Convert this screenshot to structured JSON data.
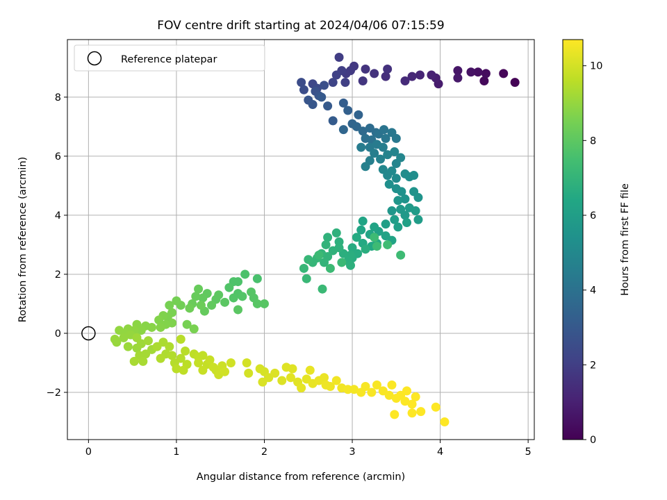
{
  "chart_data": {
    "type": "scatter",
    "title": "FOV centre drift starting at 2024/04/06 07:15:59",
    "xlabel": "Angular distance from reference (arcmin)",
    "ylabel": "Rotation from reference (arcmin)",
    "xlim": [
      -0.24,
      5.07
    ],
    "ylim": [
      -3.6,
      9.95
    ],
    "xticks": [
      0,
      1,
      2,
      3,
      4,
      5
    ],
    "yticks": [
      -2,
      0,
      2,
      4,
      6,
      8
    ],
    "xtick_labels": [
      "0",
      "1",
      "2",
      "3",
      "4",
      "5"
    ],
    "ytick_labels": [
      "−2",
      "0",
      "2",
      "4",
      "6",
      "8"
    ],
    "grid": true,
    "legend": {
      "position": "top-left",
      "entries": [
        "Reference platepar"
      ]
    },
    "reference_point": {
      "x": 0,
      "y": 0,
      "label": "Reference platepar"
    },
    "colorbar": {
      "label": "Hours from first FF file",
      "colormap": "viridis",
      "range": [
        0,
        10.7
      ],
      "ticks": [
        0,
        2,
        4,
        6,
        8,
        10
      ],
      "tick_labels": [
        "0",
        "2",
        "4",
        "6",
        "8",
        "10"
      ]
    },
    "points": [
      [
        4.85,
        8.5,
        0.05
      ],
      [
        4.72,
        8.8,
        0.15
      ],
      [
        4.5,
        8.55,
        0.25
      ],
      [
        4.52,
        8.8,
        0.35
      ],
      [
        4.43,
        8.85,
        0.45
      ],
      [
        4.35,
        8.85,
        0.55
      ],
      [
        4.2,
        8.9,
        0.65
      ],
      [
        4.2,
        8.65,
        0.75
      ],
      [
        3.98,
        8.45,
        0.85
      ],
      [
        3.95,
        8.65,
        0.95
      ],
      [
        3.9,
        8.75,
        1.05
      ],
      [
        3.77,
        8.75,
        1.15
      ],
      [
        3.68,
        8.7,
        1.25
      ],
      [
        3.6,
        8.55,
        1.35
      ],
      [
        3.38,
        8.7,
        1.45
      ],
      [
        3.4,
        8.95,
        1.55
      ],
      [
        3.25,
        8.8,
        1.6
      ],
      [
        3.15,
        8.95,
        1.65
      ],
      [
        3.12,
        8.55,
        1.7
      ],
      [
        3.02,
        9.05,
        1.8
      ],
      [
        2.98,
        8.9,
        1.85
      ],
      [
        2.93,
        8.8,
        1.9
      ],
      [
        2.85,
        9.35,
        1.95
      ],
      [
        2.88,
        8.9,
        2.0
      ],
      [
        2.92,
        8.5,
        2.05
      ],
      [
        2.82,
        8.75,
        2.1
      ],
      [
        2.78,
        8.5,
        2.2
      ],
      [
        2.55,
        8.45,
        2.3
      ],
      [
        2.6,
        8.3,
        2.4
      ],
      [
        2.42,
        8.5,
        2.5
      ],
      [
        2.45,
        8.25,
        2.55
      ],
      [
        2.68,
        8.4,
        2.6
      ],
      [
        2.58,
        8.2,
        2.7
      ],
      [
        2.62,
        8.05,
        2.8
      ],
      [
        2.5,
        7.9,
        2.85
      ],
      [
        2.55,
        7.75,
        2.9
      ],
      [
        2.65,
        8.0,
        3.0
      ],
      [
        2.72,
        7.7,
        3.05
      ],
      [
        2.78,
        7.2,
        3.1
      ],
      [
        2.9,
        7.8,
        3.2
      ],
      [
        2.95,
        7.55,
        3.3
      ],
      [
        3.07,
        7.4,
        3.4
      ],
      [
        3.0,
        7.1,
        3.5
      ],
      [
        2.9,
        6.9,
        3.55
      ],
      [
        3.05,
        7.0,
        3.6
      ],
      [
        3.12,
        6.85,
        3.7
      ],
      [
        3.2,
        6.95,
        3.8
      ],
      [
        3.27,
        6.8,
        3.85
      ],
      [
        3.15,
        6.6,
        3.9
      ],
      [
        3.22,
        6.55,
        4.0
      ],
      [
        3.3,
        6.75,
        4.05
      ],
      [
        3.36,
        6.9,
        4.1
      ],
      [
        3.38,
        6.6,
        4.2
      ],
      [
        3.45,
        6.8,
        4.25
      ],
      [
        3.5,
        6.6,
        4.3
      ],
      [
        3.2,
        6.3,
        4.35
      ],
      [
        3.28,
        6.4,
        4.4
      ],
      [
        3.1,
        6.3,
        4.45
      ],
      [
        3.35,
        6.3,
        4.5
      ],
      [
        3.25,
        6.1,
        4.55
      ],
      [
        3.2,
        5.85,
        4.6
      ],
      [
        3.15,
        5.65,
        4.65
      ],
      [
        3.32,
        5.9,
        4.7
      ],
      [
        3.4,
        6.05,
        4.75
      ],
      [
        3.48,
        6.15,
        4.8
      ],
      [
        3.5,
        5.75,
        4.85
      ],
      [
        3.55,
        5.95,
        4.9
      ],
      [
        3.35,
        5.55,
        4.95
      ],
      [
        3.4,
        5.35,
        5.0
      ],
      [
        3.45,
        5.5,
        5.05
      ],
      [
        3.5,
        5.25,
        5.1
      ],
      [
        3.6,
        5.4,
        5.15
      ],
      [
        3.65,
        5.3,
        5.2
      ],
      [
        3.7,
        5.35,
        5.25
      ],
      [
        3.42,
        5.05,
        5.3
      ],
      [
        3.5,
        4.9,
        5.35
      ],
      [
        3.56,
        4.8,
        5.4
      ],
      [
        3.6,
        4.55,
        5.45
      ],
      [
        3.7,
        4.8,
        5.5
      ],
      [
        3.75,
        4.6,
        5.55
      ],
      [
        3.52,
        4.5,
        5.6
      ],
      [
        3.45,
        4.15,
        5.65
      ],
      [
        3.55,
        4.2,
        5.7
      ],
      [
        3.6,
        4.0,
        5.75
      ],
      [
        3.65,
        4.25,
        5.8
      ],
      [
        3.72,
        4.15,
        5.85
      ],
      [
        3.75,
        3.85,
        5.9
      ],
      [
        3.48,
        3.85,
        5.95
      ],
      [
        3.38,
        3.7,
        6.0
      ],
      [
        3.52,
        3.6,
        6.05
      ],
      [
        3.62,
        3.75,
        6.1
      ],
      [
        3.3,
        3.45,
        6.15
      ],
      [
        3.38,
        3.3,
        6.2
      ],
      [
        3.45,
        3.15,
        6.25
      ],
      [
        3.25,
        3.6,
        6.25
      ],
      [
        3.2,
        3.35,
        6.3
      ],
      [
        3.12,
        3.8,
        6.3
      ],
      [
        3.1,
        3.5,
        6.35
      ],
      [
        3.28,
        3.05,
        6.4
      ],
      [
        3.22,
        2.95,
        6.45
      ],
      [
        3.12,
        3.05,
        6.5
      ],
      [
        3.05,
        3.25,
        6.55
      ],
      [
        3.0,
        2.9,
        6.6
      ],
      [
        3.06,
        2.7,
        6.6
      ],
      [
        3.0,
        2.55,
        6.65
      ],
      [
        3.15,
        2.85,
        6.7
      ],
      [
        2.98,
        2.65,
        6.7
      ],
      [
        2.9,
        2.7,
        6.75
      ],
      [
        2.95,
        2.45,
        6.75
      ],
      [
        2.98,
        2.3,
        6.8
      ],
      [
        2.85,
        3.1,
        6.8
      ],
      [
        2.82,
        3.4,
        6.85
      ],
      [
        2.85,
        2.9,
        6.85
      ],
      [
        2.78,
        2.8,
        6.9
      ],
      [
        2.72,
        3.25,
        6.9
      ],
      [
        2.7,
        3.0,
        6.95
      ],
      [
        2.72,
        2.6,
        6.95
      ],
      [
        2.68,
        2.4,
        7.0
      ],
      [
        2.65,
        2.7,
        7.0
      ],
      [
        2.6,
        2.55,
        7.05
      ],
      [
        2.55,
        2.4,
        7.05
      ],
      [
        2.5,
        2.5,
        7.1
      ],
      [
        2.45,
        2.2,
        7.1
      ],
      [
        2.48,
        1.85,
        7.15
      ],
      [
        2.66,
        1.5,
        7.2
      ],
      [
        2.88,
        2.4,
        7.2
      ],
      [
        2.75,
        2.2,
        7.25
      ],
      [
        2.62,
        2.65,
        7.25
      ],
      [
        3.25,
        3.25,
        7.3
      ],
      [
        3.28,
        2.95,
        7.3
      ],
      [
        3.55,
        2.65,
        7.3
      ],
      [
        3.4,
        3.0,
        7.35
      ],
      [
        1.92,
        1.85,
        7.6
      ],
      [
        1.78,
        2.0,
        7.65
      ],
      [
        1.7,
        1.75,
        7.7
      ],
      [
        1.65,
        1.75,
        7.7
      ],
      [
        1.6,
        1.55,
        7.75
      ],
      [
        1.7,
        1.35,
        7.75
      ],
      [
        1.75,
        1.25,
        7.8
      ],
      [
        1.65,
        1.2,
        7.8
      ],
      [
        1.85,
        1.4,
        7.85
      ],
      [
        1.88,
        1.2,
        7.85
      ],
      [
        2.0,
        1.0,
        7.9
      ],
      [
        1.92,
        1.0,
        7.9
      ],
      [
        1.7,
        0.8,
        7.95
      ],
      [
        1.55,
        1.05,
        7.95
      ],
      [
        1.48,
        1.3,
        8.0
      ],
      [
        1.45,
        1.15,
        8.0
      ],
      [
        1.35,
        1.35,
        8.05
      ],
      [
        1.3,
        1.2,
        8.1
      ],
      [
        1.4,
        0.95,
        8.1
      ],
      [
        1.32,
        0.75,
        8.15
      ],
      [
        1.25,
        1.5,
        8.2
      ],
      [
        1.22,
        1.25,
        8.2
      ],
      [
        1.18,
        1.0,
        8.25
      ],
      [
        1.28,
        0.95,
        8.3
      ],
      [
        1.15,
        0.85,
        8.35
      ],
      [
        1.05,
        0.95,
        8.4
      ],
      [
        1.0,
        1.1,
        8.45
      ],
      [
        0.92,
        0.95,
        8.5
      ],
      [
        1.12,
        0.3,
        8.5
      ],
      [
        1.2,
        0.15,
        8.55
      ],
      [
        0.95,
        0.7,
        8.55
      ],
      [
        0.9,
        0.55,
        8.6
      ],
      [
        0.85,
        0.6,
        8.65
      ],
      [
        0.95,
        0.35,
        8.65
      ],
      [
        0.88,
        0.3,
        8.7
      ],
      [
        0.8,
        0.45,
        8.7
      ],
      [
        0.82,
        0.2,
        8.75
      ],
      [
        0.72,
        0.2,
        8.8
      ],
      [
        0.65,
        0.25,
        8.8
      ],
      [
        0.55,
        0.3,
        8.85
      ],
      [
        0.6,
        0.1,
        8.85
      ],
      [
        0.52,
        0.1,
        8.9
      ],
      [
        0.45,
        0.15,
        8.9
      ],
      [
        0.35,
        0.1,
        8.95
      ],
      [
        0.42,
        0.0,
        8.95
      ],
      [
        0.48,
        -0.05,
        9.0
      ],
      [
        0.4,
        -0.15,
        9.0
      ],
      [
        0.3,
        -0.2,
        9.05
      ],
      [
        0.32,
        -0.3,
        9.05
      ],
      [
        0.45,
        -0.45,
        9.1
      ],
      [
        0.55,
        -0.5,
        9.1
      ],
      [
        0.6,
        -0.35,
        9.15
      ],
      [
        0.55,
        -0.15,
        9.15
      ],
      [
        0.68,
        -0.25,
        9.2
      ],
      [
        0.72,
        -0.55,
        9.2
      ],
      [
        0.65,
        -0.7,
        9.25
      ],
      [
        0.58,
        -0.75,
        9.25
      ],
      [
        0.62,
        -0.95,
        9.3
      ],
      [
        0.52,
        -0.95,
        9.3
      ],
      [
        0.78,
        -0.45,
        9.35
      ],
      [
        0.85,
        -0.3,
        9.35
      ],
      [
        0.92,
        -0.45,
        9.4
      ],
      [
        0.88,
        -0.7,
        9.4
      ],
      [
        0.82,
        -0.85,
        9.45
      ],
      [
        0.95,
        -0.75,
        9.45
      ],
      [
        0.98,
        -1.0,
        9.5
      ],
      [
        1.05,
        -0.85,
        9.5
      ],
      [
        1.1,
        -0.6,
        9.55
      ],
      [
        1.05,
        -0.2,
        9.55
      ],
      [
        1.12,
        -1.05,
        9.6
      ],
      [
        1.0,
        -1.2,
        9.6
      ],
      [
        1.08,
        -1.25,
        9.65
      ],
      [
        1.2,
        -0.7,
        9.65
      ],
      [
        1.25,
        -0.8,
        9.7
      ],
      [
        1.3,
        -0.75,
        9.7
      ],
      [
        1.25,
        -1.0,
        9.75
      ],
      [
        1.35,
        -1.05,
        9.75
      ],
      [
        1.3,
        -1.25,
        9.8
      ],
      [
        1.38,
        -0.9,
        9.8
      ],
      [
        1.42,
        -1.15,
        9.85
      ],
      [
        1.45,
        -1.25,
        9.85
      ],
      [
        1.52,
        -1.1,
        9.9
      ],
      [
        1.48,
        -1.4,
        9.9
      ],
      [
        1.55,
        -1.3,
        9.95
      ],
      [
        1.62,
        -1.0,
        9.95
      ],
      [
        1.8,
        -1.0,
        10.0
      ],
      [
        1.82,
        -1.35,
        10.0
      ],
      [
        1.95,
        -1.2,
        10.05
      ],
      [
        2.0,
        -1.3,
        10.05
      ],
      [
        1.98,
        -1.65,
        10.1
      ],
      [
        2.05,
        -1.5,
        10.1
      ],
      [
        2.12,
        -1.35,
        10.15
      ],
      [
        2.2,
        -1.6,
        10.15
      ],
      [
        2.25,
        -1.15,
        10.2
      ],
      [
        2.32,
        -1.2,
        10.2
      ],
      [
        2.3,
        -1.5,
        10.25
      ],
      [
        2.38,
        -1.65,
        10.25
      ],
      [
        2.42,
        -1.85,
        10.3
      ],
      [
        2.48,
        -1.55,
        10.3
      ],
      [
        2.52,
        -1.25,
        10.35
      ],
      [
        2.55,
        -1.7,
        10.35
      ],
      [
        2.62,
        -1.6,
        10.4
      ],
      [
        2.68,
        -1.5,
        10.4
      ],
      [
        2.7,
        -1.75,
        10.45
      ],
      [
        2.75,
        -1.8,
        10.45
      ],
      [
        2.82,
        -1.6,
        10.5
      ],
      [
        2.88,
        -1.85,
        10.5
      ],
      [
        2.95,
        -1.9,
        10.55
      ],
      [
        3.02,
        -1.9,
        10.55
      ],
      [
        3.1,
        -2.0,
        10.6
      ],
      [
        3.15,
        -1.8,
        10.6
      ],
      [
        3.22,
        -2.0,
        10.62
      ],
      [
        3.28,
        -1.75,
        10.62
      ],
      [
        3.35,
        -1.95,
        10.64
      ],
      [
        3.42,
        -2.1,
        10.64
      ],
      [
        3.45,
        -1.75,
        10.66
      ],
      [
        3.5,
        -2.2,
        10.66
      ],
      [
        3.55,
        -2.1,
        10.68
      ],
      [
        3.6,
        -2.3,
        10.68
      ],
      [
        3.62,
        -1.95,
        10.7
      ],
      [
        3.68,
        -2.4,
        10.7
      ],
      [
        3.72,
        -2.15,
        10.7
      ],
      [
        3.78,
        -2.65,
        10.7
      ],
      [
        3.68,
        -2.7,
        10.7
      ],
      [
        3.48,
        -2.75,
        10.7
      ],
      [
        3.95,
        -2.5,
        10.7
      ],
      [
        4.05,
        -3.0,
        10.7
      ]
    ]
  }
}
